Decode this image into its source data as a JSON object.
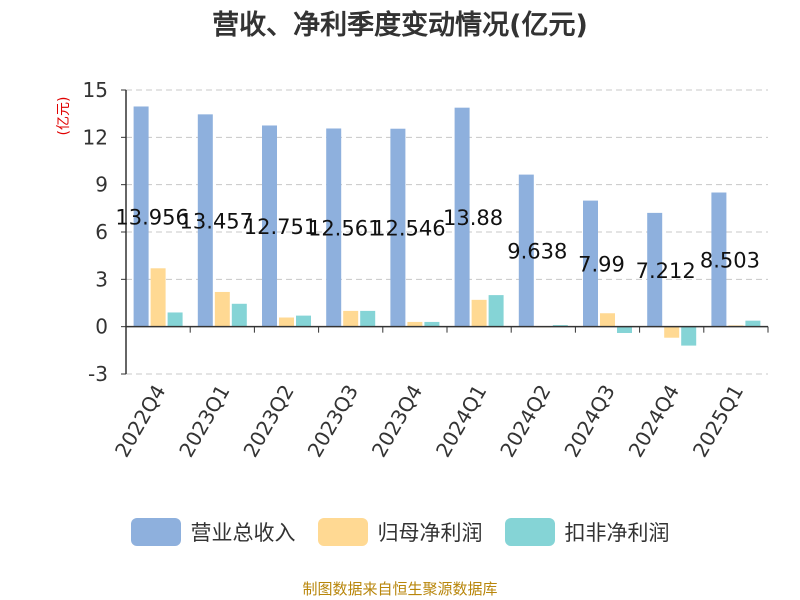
{
  "source": "制图数据来自恒生聚源数据库",
  "colors": {
    "series": [
      "#8eb0dd",
      "#ffd993",
      "#85d4d6"
    ],
    "grid": "#c8c8c8",
    "axis": "#333333",
    "unit": "#e00000",
    "source": "#b8860b"
  },
  "chart_data": {
    "type": "bar",
    "title": "营收、净利季度变动情况(亿元)",
    "ylabel": "(亿元)",
    "xlabel": "",
    "ylim": [
      -3,
      15
    ],
    "yticks": [
      -3,
      0,
      3,
      6,
      9,
      12,
      15
    ],
    "grid": true,
    "legend_position": "bottom",
    "categories": [
      "2022Q4",
      "2023Q1",
      "2023Q2",
      "2023Q3",
      "2023Q4",
      "2024Q1",
      "2024Q2",
      "2024Q3",
      "2024Q4",
      "2025Q1"
    ],
    "series": [
      {
        "name": "营业总收入",
        "values": [
          13.956,
          13.457,
          12.751,
          12.561,
          12.546,
          13.88,
          9.638,
          7.99,
          7.212,
          8.503
        ]
      },
      {
        "name": "归母净利润",
        "values": [
          3.7,
          2.2,
          0.58,
          1.0,
          0.3,
          1.7,
          0.02,
          0.85,
          -0.7,
          0.08
        ]
      },
      {
        "name": "扣非净利润",
        "values": [
          0.9,
          1.45,
          0.7,
          1.0,
          0.3,
          2.0,
          0.1,
          -0.4,
          -1.2,
          0.38
        ]
      }
    ],
    "data_labels": [
      "13.956",
      "13.457",
      "12.751",
      "12.561",
      "12.546",
      "13.88",
      "9.638",
      "7.99",
      "7.212",
      "8.503"
    ]
  }
}
